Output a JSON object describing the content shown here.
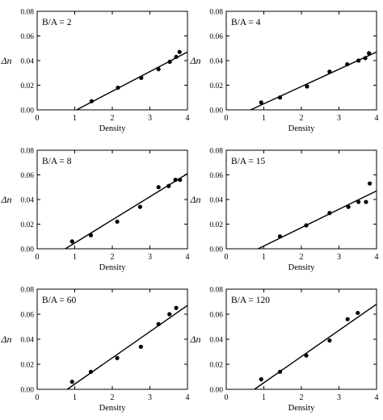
{
  "figure": {
    "ylabel": "Δn",
    "xlabel": "Density"
  },
  "chart_data": [
    {
      "type": "scatter",
      "label": "B/A = 2",
      "xlabel": "Density",
      "ylabel": "Δn",
      "xlim": [
        0,
        4
      ],
      "ylim": [
        0,
        0.08
      ],
      "xticks": [
        0,
        1,
        2,
        3,
        4
      ],
      "yticks": [
        0.0,
        0.02,
        0.04,
        0.06,
        0.08
      ],
      "ytick_labels": [
        "0.00",
        "0.02",
        "0.04",
        "0.06",
        "0.08"
      ],
      "points": {
        "x": [
          1.45,
          2.15,
          2.77,
          3.23,
          3.53,
          3.7,
          3.79
        ],
        "y": [
          0.007,
          0.018,
          0.026,
          0.033,
          0.039,
          0.043,
          0.047
        ]
      },
      "fit_line": {
        "x": [
          1.05,
          4.0
        ],
        "y": [
          0.0,
          0.047
        ]
      }
    },
    {
      "type": "scatter",
      "label": "B/A = 4",
      "xlabel": "Density",
      "ylabel": "Δn",
      "xlim": [
        0,
        4
      ],
      "ylim": [
        0,
        0.08
      ],
      "xticks": [
        0,
        1,
        2,
        3,
        4
      ],
      "yticks": [
        0.0,
        0.02,
        0.04,
        0.06,
        0.08
      ],
      "ytick_labels": [
        "0.00",
        "0.02",
        "0.04",
        "0.06",
        "0.08"
      ],
      "points": {
        "x": [
          0.93,
          1.43,
          2.15,
          2.75,
          3.22,
          3.52,
          3.7,
          3.8
        ],
        "y": [
          0.006,
          0.01,
          0.019,
          0.031,
          0.037,
          0.04,
          0.042,
          0.046
        ]
      },
      "fit_line": {
        "x": [
          0.65,
          4.0
        ],
        "y": [
          0.0,
          0.047
        ]
      }
    },
    {
      "type": "scatter",
      "label": "B/A = 8",
      "xlabel": "Density",
      "ylabel": "Δn",
      "xlim": [
        0,
        4
      ],
      "ylim": [
        0,
        0.08
      ],
      "xticks": [
        0,
        1,
        2,
        3,
        4
      ],
      "yticks": [
        0.0,
        0.02,
        0.04,
        0.06,
        0.08
      ],
      "ytick_labels": [
        "0.00",
        "0.02",
        "0.04",
        "0.06",
        "0.08"
      ],
      "points": {
        "x": [
          0.93,
          1.43,
          2.13,
          2.74,
          3.23,
          3.5,
          3.68,
          3.8
        ],
        "y": [
          0.006,
          0.011,
          0.022,
          0.034,
          0.05,
          0.051,
          0.056,
          0.056
        ]
      },
      "fit_line": {
        "x": [
          0.75,
          4.0
        ],
        "y": [
          0.0,
          0.061
        ]
      }
    },
    {
      "type": "scatter",
      "label": "B/A = 15",
      "xlabel": "Density",
      "ylabel": "Δn",
      "xlim": [
        0,
        4
      ],
      "ylim": [
        0,
        0.08
      ],
      "xticks": [
        0,
        1,
        2,
        3,
        4
      ],
      "yticks": [
        0.0,
        0.02,
        0.04,
        0.06,
        0.08
      ],
      "ytick_labels": [
        "0.00",
        "0.02",
        "0.04",
        "0.06",
        "0.08"
      ],
      "points": {
        "x": [
          1.43,
          2.13,
          2.75,
          3.25,
          3.52,
          3.72,
          3.82
        ],
        "y": [
          0.01,
          0.019,
          0.029,
          0.034,
          0.038,
          0.038,
          0.053
        ]
      },
      "fit_line": {
        "x": [
          0.85,
          4.0
        ],
        "y": [
          0.0,
          0.047
        ]
      }
    },
    {
      "type": "scatter",
      "label": "B/A = 60",
      "xlabel": "Density",
      "ylabel": "Δn",
      "xlim": [
        0,
        4
      ],
      "ylim": [
        0,
        0.08
      ],
      "xticks": [
        0,
        1,
        2,
        3,
        4
      ],
      "yticks": [
        0.0,
        0.02,
        0.04,
        0.06,
        0.08
      ],
      "ytick_labels": [
        "0.00",
        "0.02",
        "0.04",
        "0.06",
        "0.08"
      ],
      "points": {
        "x": [
          0.93,
          1.43,
          2.13,
          2.76,
          3.23,
          3.52,
          3.7
        ],
        "y": [
          0.006,
          0.014,
          0.025,
          0.034,
          0.052,
          0.06,
          0.065
        ]
      },
      "fit_line": {
        "x": [
          0.8,
          4.0
        ],
        "y": [
          0.0,
          0.067
        ]
      }
    },
    {
      "type": "scatter",
      "label": "B/A = 120",
      "xlabel": "Density",
      "ylabel": "Δn",
      "xlim": [
        0,
        4
      ],
      "ylim": [
        0,
        0.08
      ],
      "xticks": [
        0,
        1,
        2,
        3,
        4
      ],
      "yticks": [
        0.0,
        0.02,
        0.04,
        0.06,
        0.08
      ],
      "ytick_labels": [
        "0.00",
        "0.02",
        "0.04",
        "0.06",
        "0.08"
      ],
      "points": {
        "x": [
          0.93,
          1.43,
          2.13,
          2.75,
          3.23,
          3.5
        ],
        "y": [
          0.008,
          0.014,
          0.027,
          0.039,
          0.056,
          0.061
        ]
      },
      "fit_line": {
        "x": [
          0.75,
          4.0
        ],
        "y": [
          0.0,
          0.068
        ]
      }
    }
  ]
}
